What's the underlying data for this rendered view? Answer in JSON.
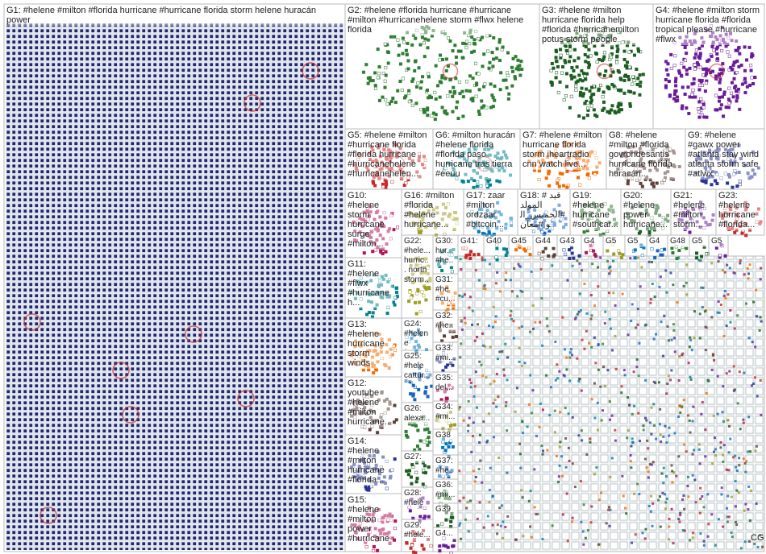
{
  "groups": [
    {
      "label": "G1: #helene #milton #florida hurricane #hurricane florida storm helene huracán power"
    },
    {
      "label": "G2: #helene #florida hurricane #hurricane #milton #hurricanehelene storm #flwx helene florida"
    },
    {
      "label": "G3: #helene #milton hurricane florida help #florida #hurricanemilton potus storm people"
    },
    {
      "label": "G4: #helene #milton storm hurricane florida #florida tropical please #hurricane #flwx"
    },
    {
      "label": "G5: #helene #milton #hurricane florida #florida hurricane #hurricanehelene #hurricanehelen..."
    },
    {
      "label": "G6: #milton huracán #helene florida #florida paso hurricane tras tierra #eeuu"
    },
    {
      "label": "G7: #helene #milton hurricane florida storm iheartradio cnn watch live..."
    },
    {
      "label": "G8: #helene #milton #florida govrondesantis hurricane florida huracán..."
    },
    {
      "label": "G9: #helene #gawx power #atlanta stay wind atlanta storm safe #atlwx"
    },
    {
      "label": "G10: #helene storm hurricane surge #milton..."
    },
    {
      "label": "G16: #milton #florida #helene hurricane..."
    },
    {
      "label": "G17: zaar #milton ordzaar #bitcoin..."
    },
    {
      "label": "G18: # قيد المولد #الخميس_الو #معان الكو..."
    },
    {
      "label": "G19: #helene hurricane #southcar..."
    },
    {
      "label": "G20: #helene power hurricane..."
    },
    {
      "label": "G21: #helene #milton storm..."
    },
    {
      "label": "G23: #helene hurricane #florida..."
    },
    {
      "label": "G11: #helene #flwx #hurricaneh... #hurricane..."
    },
    {
      "label": "G13: #helene hurricane storm winds #milton..."
    },
    {
      "label": "G12: youtube #helene #milton hurricane..."
    },
    {
      "label": "G14: #helene #milton hurricane #florida..."
    },
    {
      "label": "G15: #helene #milton power #hurricane..."
    },
    {
      "label": "G22: #hele... hurric... north storm..."
    },
    {
      "label": "G24: #helene foxwe... storm..."
    },
    {
      "label": "G25: #hele cattur... #hurri..."
    },
    {
      "label": "G26: alexa..."
    },
    {
      "label": "G27:"
    },
    {
      "label": "G28: #hele cnnbr..."
    },
    {
      "label": "G29: #hele..."
    },
    {
      "label": "G30: hur... #he..."
    },
    {
      "label": "G31: #he #cu..."
    },
    {
      "label": "G32: #he..."
    },
    {
      "label": "G33: #mi..."
    },
    {
      "label": "G35: del..."
    },
    {
      "label": "G34: #mi..."
    },
    {
      "label": "G38"
    },
    {
      "label": "G37: #he..."
    },
    {
      "label": "G36: #mi..."
    },
    {
      "label": "G39"
    },
    {
      "label": "G4..."
    },
    {
      "label": "G41:"
    },
    {
      "label": "G40"
    },
    {
      "label": "G45"
    },
    {
      "label": "G44"
    },
    {
      "label": "G43"
    },
    {
      "label": "G4"
    },
    {
      "label": "G5"
    },
    {
      "label": "G5"
    },
    {
      "label": "G4"
    },
    {
      "label": "G48"
    },
    {
      "label": "G54"
    },
    {
      "label": "G5"
    }
  ],
  "footer": "CG"
}
